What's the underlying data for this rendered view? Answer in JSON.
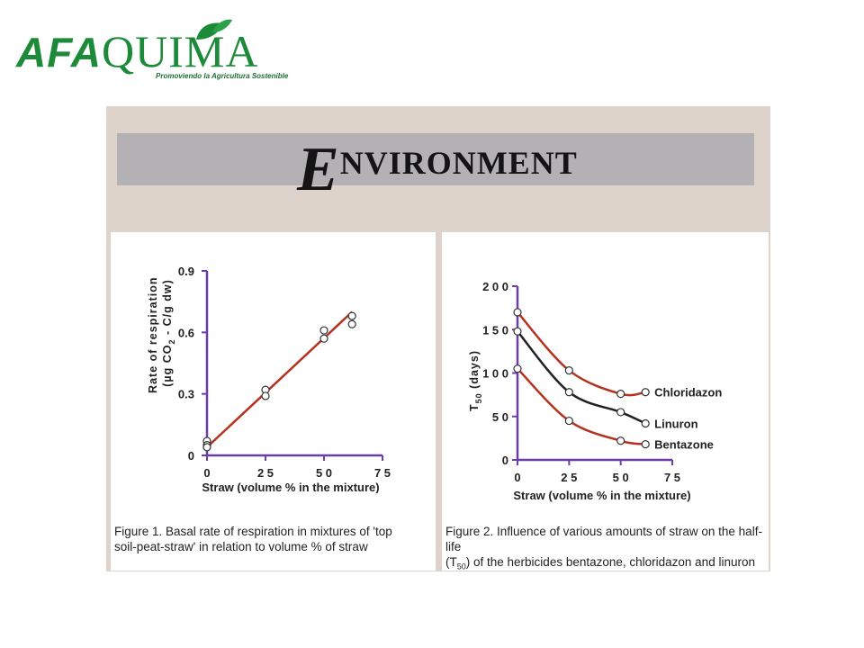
{
  "logo": {
    "afa": "AFA",
    "quima": "QUIMA",
    "tagline": "Promoviendo la Agricultura Sostenible"
  },
  "banner": {
    "first_letter": "E",
    "rest": "NVIRONMENT"
  },
  "colors": {
    "series_line": "#b5321f",
    "linuron_line": "#222222",
    "axis": "#6a3fa5",
    "logo_green": "#1d8a3a"
  },
  "chart_data": [
    {
      "type": "scatter",
      "xlabel": "Straw (volume % in the mixture)",
      "ylabel_lines": [
        "Rate of respiration",
        "(µg CO",
        "2",
        " - C/g dw)"
      ],
      "xlim": [
        0,
        75
      ],
      "ylim": [
        0,
        0.9
      ],
      "x_ticks": [
        0,
        25,
        50,
        75
      ],
      "x_tick_labels": [
        "0",
        "2 5",
        "5 0",
        "7 5"
      ],
      "y_ticks": [
        0,
        0.3,
        0.6,
        0.9
      ],
      "y_tick_labels": [
        "0",
        "0.3",
        "0.6",
        "0.9"
      ],
      "points": [
        {
          "x": 0,
          "y": 0.07
        },
        {
          "x": 0,
          "y": 0.05
        },
        {
          "x": 0,
          "y": 0.04
        },
        {
          "x": 25,
          "y": 0.32
        },
        {
          "x": 25,
          "y": 0.29
        },
        {
          "x": 50,
          "y": 0.61
        },
        {
          "x": 50,
          "y": 0.57
        },
        {
          "x": 62,
          "y": 0.68
        },
        {
          "x": 62,
          "y": 0.64
        }
      ],
      "trend_line": {
        "x": [
          0,
          62
        ],
        "y": [
          0.04,
          0.7
        ]
      },
      "caption": "Figure 1. Basal rate of respiration in mixtures of 'top soil-peat-straw' in relation to volume % of straw",
      "caption_lines": [
        "Figure 1. Basal rate of respiration in mixtures of 'top",
        "soil-peat-straw' in relation to volume % of straw"
      ]
    },
    {
      "type": "line",
      "xlabel": "Straw (volume % in the mixture)",
      "ylabel": "T",
      "ylabel_sub": "50",
      "ylabel_unit": " (days)",
      "xlim": [
        0,
        75
      ],
      "ylim": [
        0,
        200
      ],
      "x_ticks": [
        0,
        25,
        50,
        75
      ],
      "x_tick_labels": [
        "0",
        "2 5",
        "5 0",
        "7 5"
      ],
      "y_ticks": [
        0,
        50,
        100,
        150,
        200
      ],
      "y_tick_labels": [
        "0",
        "5 0",
        "1 0 0",
        "1 5 0",
        "2 0 0"
      ],
      "series": [
        {
          "name": "Chloridazon",
          "color": "#b5321f",
          "x": [
            0,
            25,
            50,
            62
          ],
          "y": [
            170,
            103,
            76,
            78
          ]
        },
        {
          "name": "Linuron",
          "color": "#222222",
          "x": [
            0,
            25,
            50,
            62
          ],
          "y": [
            148,
            78,
            55,
            42
          ]
        },
        {
          "name": "Bentazone",
          "color": "#b5321f",
          "x": [
            0,
            25,
            50,
            62
          ],
          "y": [
            105,
            45,
            22,
            18
          ]
        }
      ],
      "caption": "Figure 2. Influence of various amounts of straw on the half-life (T50) of the herbicides bentazone, chloridazon and linuron",
      "caption_lines": [
        "Figure 2. Influence of various amounts of straw on the half-life",
        "(T",
        "50",
        ") of the herbicides bentazone, chloridazon and linuron"
      ]
    }
  ]
}
